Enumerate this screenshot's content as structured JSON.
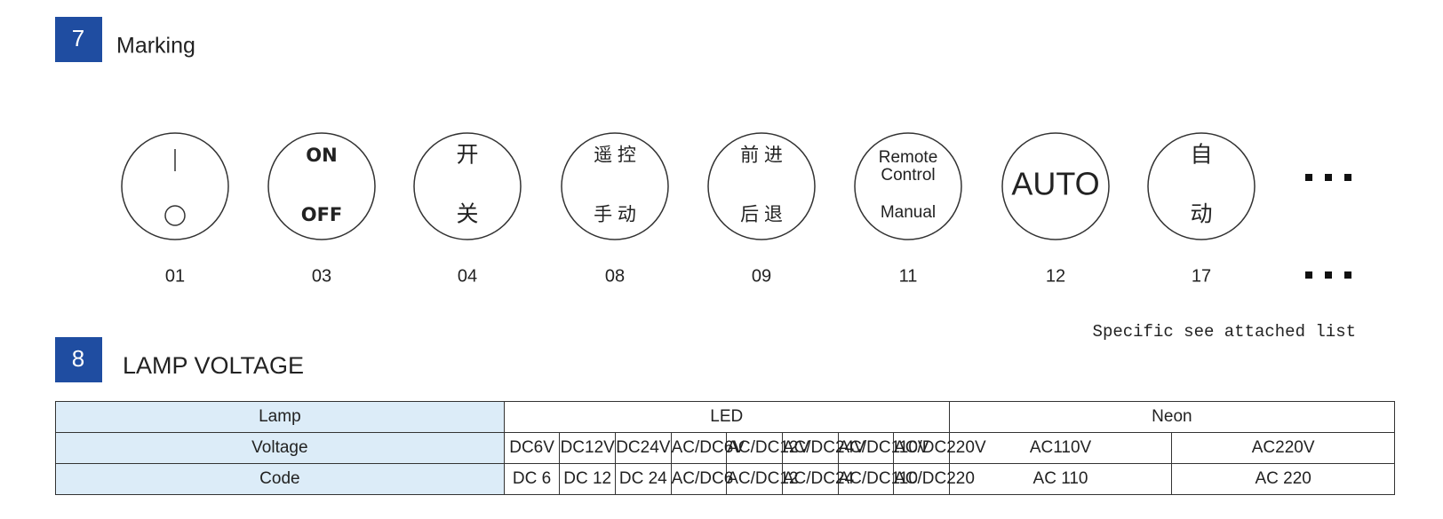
{
  "sections": [
    {
      "number": "7",
      "title": "Marking"
    },
    {
      "number": "8",
      "title": "LAMP VOLTAGE"
    }
  ],
  "markings": [
    {
      "code": "01",
      "lines": []
    },
    {
      "code": "03",
      "lines": [
        "ON",
        "OFF"
      ]
    },
    {
      "code": "04",
      "lines": [
        "开",
        "关"
      ]
    },
    {
      "code": "08",
      "lines": [
        "遥 控",
        "手 动"
      ]
    },
    {
      "code": "09",
      "lines": [
        "前 进",
        "后 退"
      ]
    },
    {
      "code": "11",
      "lines": [
        "Remote",
        "Control",
        "Manual"
      ]
    },
    {
      "code": "12",
      "lines": [
        "AUTO"
      ]
    },
    {
      "code": "17",
      "lines": [
        "自",
        "动"
      ]
    }
  ],
  "note": "Specific see attached list",
  "table": {
    "rows": [
      [
        "Lamp",
        "LED",
        "Neon"
      ],
      [
        "Voltage",
        "DC6V",
        "DC12V",
        "DC24V",
        "AC/DC6V",
        "AC/DC12V",
        "AC/DC24V",
        "AC/DC110V",
        "AC/DC220V",
        "AC110V",
        "AC220V"
      ],
      [
        "Code",
        "DC 6",
        "DC 12",
        "DC 24",
        "AC/DC6",
        "AC/DC12",
        "AC/DC24",
        "AC/DC110",
        "AC/DC220",
        "AC 110",
        "AC 220"
      ]
    ]
  }
}
